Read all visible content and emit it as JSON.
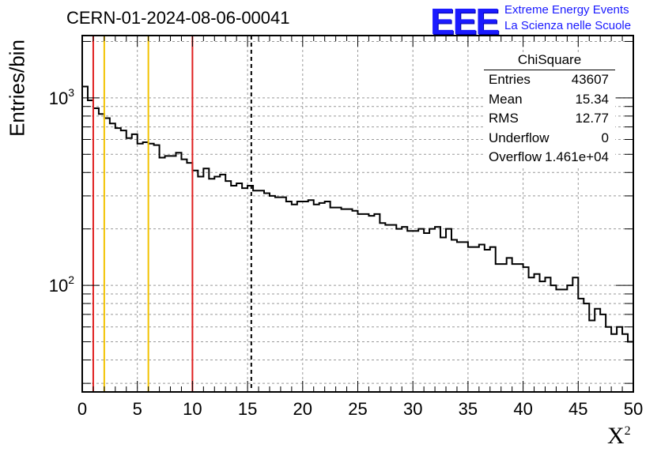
{
  "title": "CERN-01-2024-08-06-00041",
  "logo": {
    "mark": "EEE",
    "line1": "Extreme Energy Events",
    "line2": "La Scienza nelle Scuole"
  },
  "stats": {
    "title": "ChiSquare",
    "rows": [
      {
        "label": "Entries",
        "value": "43607"
      },
      {
        "label": "Mean",
        "value": "15.34"
      },
      {
        "label": "RMS",
        "value": "12.77"
      },
      {
        "label": "Underflow",
        "value": "0"
      },
      {
        "label": "Overflow",
        "value": "1.461e+04"
      }
    ]
  },
  "chart_data": {
    "type": "histogram",
    "xlabel": "X",
    "xlabel_sup": "2",
    "ylabel": "Entries/bin",
    "xlim": [
      0,
      50
    ],
    "ylim": [
      27,
      2150
    ],
    "yscale": "log",
    "grid": true,
    "xticks": [
      "0",
      "5",
      "10",
      "15",
      "20",
      "25",
      "30",
      "35",
      "40",
      "45",
      "50"
    ],
    "yticks": [
      {
        "value": 100,
        "label": "10",
        "sup": "2"
      },
      {
        "value": 1000,
        "label": "10",
        "sup": "3"
      }
    ],
    "bin_width": 0.5,
    "values": [
      1150,
      970,
      880,
      820,
      780,
      730,
      690,
      670,
      610,
      640,
      570,
      580,
      570,
      560,
      480,
      490,
      490,
      510,
      470,
      450,
      410,
      380,
      420,
      370,
      380,
      390,
      360,
      340,
      350,
      330,
      340,
      320,
      320,
      310,
      300,
      295,
      295,
      280,
      270,
      280,
      280,
      285,
      270,
      275,
      280,
      260,
      260,
      255,
      255,
      250,
      240,
      240,
      235,
      240,
      215,
      210,
      210,
      200,
      205,
      195,
      195,
      200,
      190,
      200,
      205,
      180,
      200,
      175,
      170,
      170,
      160,
      160,
      165,
      155,
      160,
      130,
      130,
      140,
      130,
      130,
      125,
      110,
      115,
      105,
      110,
      100,
      95,
      95,
      100,
      110,
      85,
      80,
      65,
      75,
      70,
      60,
      55,
      60,
      55,
      50
    ],
    "vlines": [
      {
        "x": 1,
        "color": "#e02020",
        "style": "solid"
      },
      {
        "x": 2,
        "color": "#f2c200",
        "style": "solid"
      },
      {
        "x": 6,
        "color": "#f2c200",
        "style": "solid"
      },
      {
        "x": 10,
        "color": "#e02020",
        "style": "solid"
      },
      {
        "x": 15.34,
        "color": "#000000",
        "style": "dashed"
      }
    ]
  }
}
